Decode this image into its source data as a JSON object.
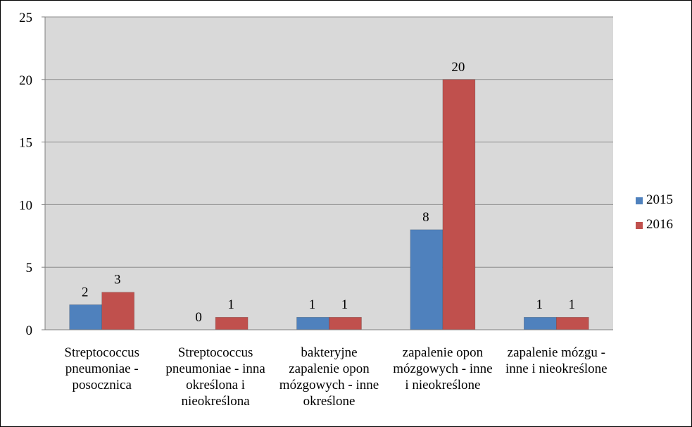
{
  "chart_data": {
    "type": "bar",
    "title": "",
    "xlabel": "",
    "ylabel": "",
    "ylim": [
      0,
      25
    ],
    "yticks": [
      0,
      5,
      10,
      15,
      20,
      25
    ],
    "grid": true,
    "legend_position": "right",
    "categories": [
      [
        "Streptococcus",
        "pneumoniae -",
        "posocznica"
      ],
      [
        "Streptococcus",
        "pneumoniae - inna",
        "określona i",
        "nieokreślona"
      ],
      [
        "bakteryjne",
        "zapalenie opon",
        "mózgowych - inne",
        "określone"
      ],
      [
        "zapalenie opon",
        "mózgowych - inne",
        "i nieokreślone"
      ],
      [
        "zapalenie mózgu -",
        "inne i nieokreślone"
      ]
    ],
    "series": [
      {
        "name": "2015",
        "color": "#4F81BD",
        "values": [
          2,
          0,
          1,
          8,
          1
        ]
      },
      {
        "name": "2016",
        "color": "#C0504D",
        "values": [
          3,
          1,
          1,
          20,
          1
        ]
      }
    ]
  }
}
